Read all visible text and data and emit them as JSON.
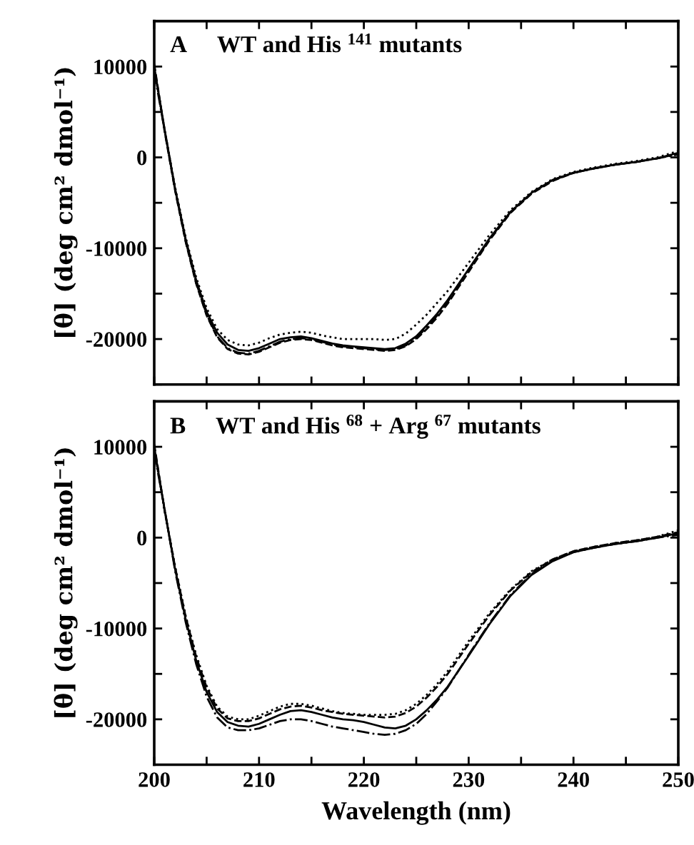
{
  "chart_data": [
    {
      "type": "line",
      "title": "A     WT and His $^{141}$ mutants",
      "ylabel": "[θ] (deg cm² dmol⁻¹)",
      "tick_labels": "y",
      "grid": false,
      "legend": false,
      "x": [
        200,
        201,
        202,
        203,
        204,
        205,
        206,
        207,
        208,
        209,
        210,
        211,
        212,
        213,
        214,
        215,
        216,
        217,
        218,
        219,
        220,
        221,
        222,
        223,
        224,
        225,
        226,
        227,
        228,
        230,
        232,
        234,
        236,
        238,
        240,
        242,
        244,
        246,
        248,
        250
      ],
      "xlim": [
        200,
        250
      ],
      "xticks": [
        {
          "value": 200,
          "label": null
        },
        {
          "value": 205,
          "label": null
        },
        {
          "value": 210,
          "label": null
        },
        {
          "value": 215,
          "label": null
        },
        {
          "value": 220,
          "label": null
        },
        {
          "value": 225,
          "label": null
        },
        {
          "value": 230,
          "label": null
        },
        {
          "value": 235,
          "label": null
        },
        {
          "value": 240,
          "label": null
        },
        {
          "value": 245,
          "label": null
        },
        {
          "value": 250,
          "label": null
        }
      ],
      "ylim": [
        -25000,
        15000
      ],
      "yticks": [
        {
          "value": -25000,
          "label": null
        },
        -20000,
        {
          "value": -15000,
          "label": null
        },
        -10000,
        {
          "value": -5000,
          "label": null
        },
        0,
        {
          "value": 5000,
          "label": null
        },
        10000,
        {
          "value": 15000,
          "label": null
        }
      ],
      "series": [
        {
          "color": "#000000",
          "line_style": "solid",
          "values": [
            10000,
            3000,
            -3500,
            -9000,
            -13500,
            -17000,
            -19300,
            -20600,
            -21200,
            -21300,
            -21000,
            -20500,
            -20000,
            -19800,
            -19700,
            -19900,
            -20200,
            -20500,
            -20700,
            -20800,
            -20900,
            -21000,
            -21100,
            -21000,
            -20500,
            -19700,
            -18500,
            -17200,
            -15700,
            -12300,
            -8900,
            -6000,
            -3900,
            -2500,
            -1700,
            -1200,
            -800,
            -500,
            -100,
            500
          ]
        },
        {
          "color": "#000000",
          "line_style": "dotted",
          "values": [
            9700,
            3000,
            -3300,
            -8800,
            -13200,
            -16600,
            -18900,
            -20100,
            -20600,
            -20700,
            -20400,
            -19900,
            -19500,
            -19300,
            -19200,
            -19300,
            -19600,
            -19800,
            -20000,
            -20000,
            -20000,
            -20000,
            -20100,
            -20000,
            -19400,
            -18400,
            -17300,
            -16000,
            -14700,
            -11600,
            -8500,
            -5800,
            -3800,
            -2400,
            -1600,
            -1100,
            -700,
            -400,
            0,
            700
          ]
        },
        {
          "color": "#000000",
          "line_style": "dashed",
          "values": [
            10300,
            2800,
            -3700,
            -9300,
            -13900,
            -17400,
            -19800,
            -21100,
            -21600,
            -21700,
            -21400,
            -20900,
            -20400,
            -20100,
            -20000,
            -20100,
            -20400,
            -20700,
            -20900,
            -21000,
            -21100,
            -21200,
            -21300,
            -21200,
            -20800,
            -20000,
            -18900,
            -17600,
            -16100,
            -12600,
            -9100,
            -6100,
            -4000,
            -2600,
            -1700,
            -1200,
            -800,
            -500,
            -100,
            400
          ]
        },
        {
          "color": "#000000",
          "line_style": "dashdot",
          "values": [
            9400,
            2900,
            -3600,
            -9200,
            -13800,
            -17300,
            -19700,
            -21000,
            -21500,
            -21600,
            -21300,
            -20800,
            -20300,
            -20000,
            -19900,
            -20000,
            -20300,
            -20600,
            -20800,
            -20900,
            -21000,
            -21100,
            -21200,
            -21100,
            -20700,
            -19900,
            -18700,
            -17400,
            -15900,
            -12400,
            -9000,
            -6000,
            -3900,
            -2500,
            -1700,
            -1200,
            -800,
            -500,
            -100,
            300
          ]
        }
      ]
    },
    {
      "type": "line",
      "title": "B     WT and His $^{68}$ + Arg $^{67}$ mutants",
      "ylabel": "[θ] (deg cm² dmol⁻¹)",
      "xlabel": "Wavelength (nm)",
      "grid": false,
      "legend": false,
      "x": [
        200,
        201,
        202,
        203,
        204,
        205,
        206,
        207,
        208,
        209,
        210,
        211,
        212,
        213,
        214,
        215,
        216,
        217,
        218,
        219,
        220,
        221,
        222,
        223,
        224,
        225,
        226,
        227,
        228,
        230,
        232,
        234,
        236,
        238,
        240,
        242,
        244,
        246,
        248,
        250
      ],
      "xlim": [
        200,
        250
      ],
      "xticks": [
        200,
        {
          "value": 205,
          "label": null
        },
        210,
        {
          "value": 215,
          "label": null
        },
        220,
        {
          "value": 225,
          "label": null
        },
        230,
        {
          "value": 235,
          "label": null
        },
        240,
        {
          "value": 245,
          "label": null
        },
        250
      ],
      "ylim": [
        -25000,
        15000
      ],
      "yticks": [
        {
          "value": -25000,
          "label": null
        },
        -20000,
        {
          "value": -15000,
          "label": null
        },
        -10000,
        {
          "value": -5000,
          "label": null
        },
        0,
        {
          "value": 5000,
          "label": null
        },
        10000,
        {
          "value": 15000,
          "label": null
        }
      ],
      "series": [
        {
          "color": "#000000",
          "line_style": "solid",
          "values": [
            10000,
            3000,
            -3500,
            -9000,
            -13500,
            -17000,
            -19200,
            -20300,
            -20700,
            -20800,
            -20500,
            -20000,
            -19500,
            -19100,
            -19000,
            -19200,
            -19500,
            -19800,
            -20000,
            -20100,
            -20300,
            -20600,
            -20900,
            -21000,
            -20700,
            -20000,
            -19000,
            -17800,
            -16400,
            -13000,
            -9500,
            -6400,
            -4100,
            -2600,
            -1600,
            -1100,
            -700,
            -400,
            0,
            500
          ]
        },
        {
          "color": "#000000",
          "line_style": "dotted",
          "values": [
            9700,
            2900,
            -3200,
            -8600,
            -12900,
            -16300,
            -18600,
            -19700,
            -20000,
            -20000,
            -19600,
            -19100,
            -18600,
            -18300,
            -18300,
            -18500,
            -18800,
            -19100,
            -19300,
            -19400,
            -19500,
            -19500,
            -19500,
            -19400,
            -19000,
            -18300,
            -17300,
            -16100,
            -14700,
            -11400,
            -8300,
            -5700,
            -3700,
            -2400,
            -1500,
            -1000,
            -600,
            -300,
            100,
            800
          ]
        },
        {
          "color": "#000000",
          "line_style": "dashed",
          "values": [
            10300,
            2900,
            -3300,
            -8700,
            -13100,
            -16500,
            -18800,
            -19900,
            -20200,
            -20200,
            -19900,
            -19400,
            -18900,
            -18600,
            -18500,
            -18700,
            -19000,
            -19200,
            -19400,
            -19500,
            -19600,
            -19700,
            -19800,
            -19700,
            -19300,
            -18600,
            -17600,
            -16400,
            -15000,
            -11700,
            -8500,
            -5800,
            -3800,
            -2400,
            -1500,
            -1000,
            -600,
            -300,
            100,
            600
          ]
        },
        {
          "color": "#000000",
          "line_style": "dashdot",
          "values": [
            9400,
            3100,
            -3700,
            -9300,
            -13900,
            -17500,
            -19800,
            -20900,
            -21200,
            -21200,
            -21000,
            -20600,
            -20200,
            -20000,
            -20000,
            -20200,
            -20500,
            -20800,
            -21000,
            -21200,
            -21400,
            -21600,
            -21700,
            -21600,
            -21200,
            -20500,
            -19400,
            -18000,
            -16500,
            -12900,
            -9400,
            -6300,
            -4000,
            -2500,
            -1600,
            -1100,
            -700,
            -400,
            0,
            300
          ]
        }
      ]
    }
  ]
}
